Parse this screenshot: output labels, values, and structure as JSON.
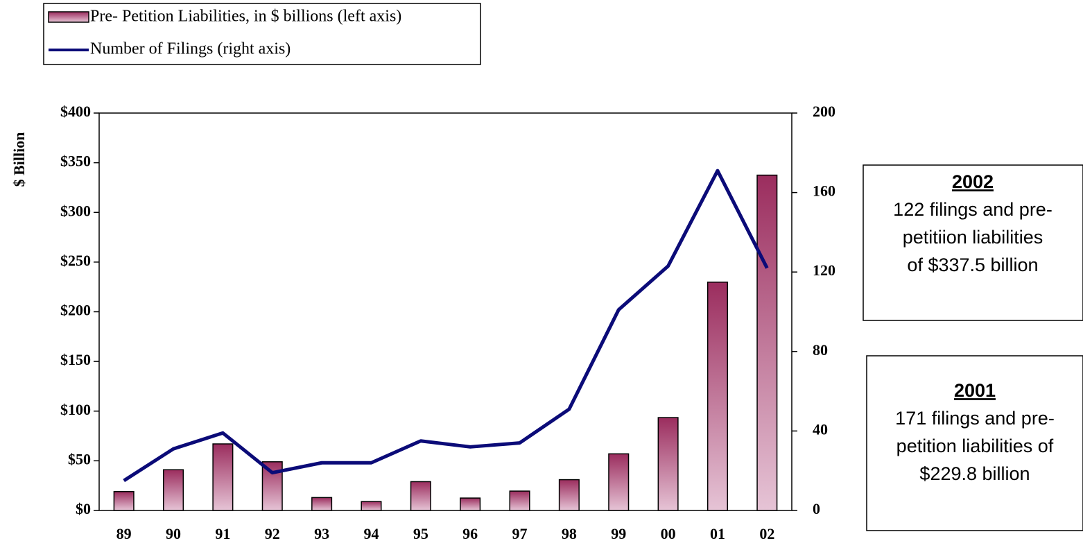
{
  "chart_data": {
    "type": "bar-line",
    "y_label": "$ Billion",
    "categories": [
      "89",
      "90",
      "91",
      "92",
      "93",
      "94",
      "95",
      "96",
      "97",
      "98",
      "99",
      "00",
      "01",
      "02"
    ],
    "series": [
      {
        "name": "Pre- Petition Liabilities, in $ billions (left axis)",
        "type": "bar",
        "color": "#9b2d5e",
        "values": [
          19,
          41,
          67,
          49,
          13,
          9,
          29,
          12.5,
          19.5,
          31,
          57,
          93.5,
          229.8,
          337.5
        ]
      },
      {
        "name": "Number of Filings (right axis)",
        "type": "line",
        "color": "#0b0b78",
        "axis": "y2",
        "values": [
          15,
          31,
          39,
          19,
          24,
          24,
          35,
          32,
          34,
          51,
          101,
          123,
          171,
          122
        ]
      }
    ],
    "ylim": [
      0,
      400
    ],
    "yticks": [
      {
        "value": 0,
        "label": "$0"
      },
      {
        "value": 50,
        "label": "$50"
      },
      {
        "value": 100,
        "label": "$100"
      },
      {
        "value": 150,
        "label": "$150"
      },
      {
        "value": 200,
        "label": "$200"
      },
      {
        "value": 250,
        "label": "$250"
      },
      {
        "value": 300,
        "label": "$300"
      },
      {
        "value": 350,
        "label": "$350"
      },
      {
        "value": 400,
        "label": "$400"
      }
    ],
    "y2lim": [
      0,
      200
    ],
    "y2ticks": [
      0,
      40,
      80,
      120,
      160,
      200
    ],
    "annotations": [
      {
        "title": "2002",
        "lines": [
          "122 filings and pre-",
          "petitiion liabilities",
          "of $337.5 billion"
        ]
      },
      {
        "title": "2001",
        "lines": [
          "171 filings and pre-",
          "petition liabilities of",
          "$229.8 billion"
        ]
      }
    ]
  }
}
